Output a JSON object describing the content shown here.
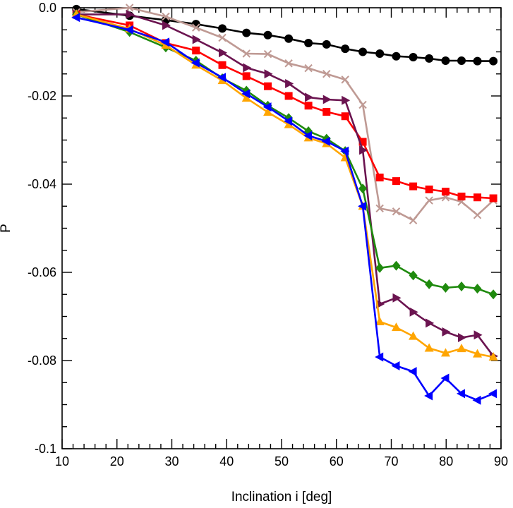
{
  "chart_data": {
    "type": "line",
    "title": "",
    "xlabel": "Inclination i [deg]",
    "ylabel": "P",
    "xlim": [
      10,
      90
    ],
    "ylim": [
      -0.1,
      0.0
    ],
    "xticks": [
      10,
      20,
      30,
      40,
      50,
      60,
      70,
      80,
      90
    ],
    "xtick_labels": [
      "10",
      "20",
      "30",
      "40",
      "50",
      "60",
      "70",
      "80",
      "90"
    ],
    "yticks": [
      0.0,
      -0.02,
      -0.04,
      -0.06,
      -0.08,
      -0.1
    ],
    "ytick_labels": [
      "0.0",
      "-0.02",
      "-0.04",
      "-0.06",
      "-0.08",
      "-0.1"
    ],
    "grid": false,
    "legend": "none",
    "series": [
      {
        "marker": "circle",
        "color": "#000000",
        "points": [
          [
            12.6,
            -0.0003
          ],
          [
            22.3,
            -0.0018
          ],
          [
            28.9,
            -0.0028
          ],
          [
            34.4,
            -0.0037
          ],
          [
            39.2,
            -0.0047
          ],
          [
            43.6,
            -0.0057
          ],
          [
            47.5,
            -0.0062
          ],
          [
            51.3,
            -0.007
          ],
          [
            54.9,
            -0.008
          ],
          [
            58.2,
            -0.0083
          ],
          [
            61.6,
            -0.0093
          ],
          [
            64.8,
            -0.01
          ],
          [
            67.9,
            -0.0104
          ],
          [
            70.9,
            -0.011
          ],
          [
            74.0,
            -0.0112
          ],
          [
            76.9,
            -0.0115
          ],
          [
            79.9,
            -0.012
          ],
          [
            82.8,
            -0.012
          ],
          [
            85.7,
            -0.0121
          ],
          [
            88.6,
            -0.0121
          ]
        ]
      },
      {
        "marker": "cross",
        "color": "#bf9a94",
        "points": [
          [
            12.6,
            -0.001
          ],
          [
            22.3,
            0.0
          ],
          [
            28.9,
            -0.002
          ],
          [
            34.4,
            -0.0045
          ],
          [
            39.2,
            -0.0068
          ],
          [
            43.6,
            -0.0104
          ],
          [
            47.5,
            -0.0105
          ],
          [
            51.3,
            -0.0126
          ],
          [
            54.9,
            -0.0137
          ],
          [
            58.2,
            -0.015
          ],
          [
            61.6,
            -0.0163
          ],
          [
            64.8,
            -0.022
          ],
          [
            67.9,
            -0.0455
          ],
          [
            70.9,
            -0.0462
          ],
          [
            74.0,
            -0.0482
          ],
          [
            76.9,
            -0.0437
          ],
          [
            79.9,
            -0.043
          ],
          [
            82.8,
            -0.044
          ],
          [
            85.7,
            -0.047
          ],
          [
            88.6,
            -0.0437
          ]
        ]
      },
      {
        "marker": "square",
        "color": "#ff0000",
        "points": [
          [
            12.6,
            -0.0015
          ],
          [
            22.3,
            -0.004
          ],
          [
            28.9,
            -0.008
          ],
          [
            34.4,
            -0.0097
          ],
          [
            39.2,
            -0.013
          ],
          [
            43.6,
            -0.0155
          ],
          [
            47.5,
            -0.0178
          ],
          [
            51.3,
            -0.02
          ],
          [
            54.9,
            -0.0222
          ],
          [
            58.2,
            -0.0236
          ],
          [
            61.6,
            -0.0246
          ],
          [
            64.8,
            -0.0304
          ],
          [
            67.9,
            -0.0385
          ],
          [
            70.9,
            -0.0393
          ],
          [
            74.0,
            -0.0405
          ],
          [
            76.9,
            -0.0412
          ],
          [
            79.9,
            -0.0417
          ],
          [
            82.8,
            -0.0428
          ],
          [
            85.7,
            -0.043
          ],
          [
            88.6,
            -0.0432
          ]
        ]
      },
      {
        "marker": "triangle-right",
        "color": "#6b1450",
        "points": [
          [
            12.6,
            -0.0015
          ],
          [
            22.3,
            -0.0015
          ],
          [
            28.9,
            -0.004
          ],
          [
            34.4,
            -0.0072
          ],
          [
            39.2,
            -0.0102
          ],
          [
            43.6,
            -0.0136
          ],
          [
            47.5,
            -0.015
          ],
          [
            51.3,
            -0.0172
          ],
          [
            54.9,
            -0.0203
          ],
          [
            58.2,
            -0.0208
          ],
          [
            61.6,
            -0.021
          ],
          [
            64.8,
            -0.0323
          ],
          [
            67.9,
            -0.0672
          ],
          [
            70.9,
            -0.0658
          ],
          [
            74.0,
            -0.069
          ],
          [
            76.9,
            -0.0715
          ],
          [
            79.9,
            -0.0735
          ],
          [
            82.8,
            -0.0748
          ],
          [
            85.7,
            -0.0742
          ],
          [
            88.6,
            -0.079
          ]
        ]
      },
      {
        "marker": "diamond",
        "color": "#1f8a0e",
        "points": [
          [
            12.6,
            -0.0015
          ],
          [
            22.3,
            -0.0055
          ],
          [
            28.9,
            -0.009
          ],
          [
            34.4,
            -0.012
          ],
          [
            39.2,
            -0.016
          ],
          [
            43.6,
            -0.0188
          ],
          [
            47.5,
            -0.0222
          ],
          [
            51.3,
            -0.025
          ],
          [
            54.9,
            -0.028
          ],
          [
            58.2,
            -0.0297
          ],
          [
            61.6,
            -0.0325
          ],
          [
            64.8,
            -0.041
          ],
          [
            67.9,
            -0.059
          ],
          [
            70.9,
            -0.0585
          ],
          [
            74.0,
            -0.0607
          ],
          [
            76.9,
            -0.0627
          ],
          [
            79.9,
            -0.0635
          ],
          [
            82.8,
            -0.0632
          ],
          [
            85.7,
            -0.0637
          ],
          [
            88.6,
            -0.065
          ]
        ]
      },
      {
        "marker": "triangle-up",
        "color": "#ffa500",
        "points": [
          [
            12.6,
            -0.0015
          ],
          [
            22.3,
            -0.0048
          ],
          [
            28.9,
            -0.0085
          ],
          [
            34.4,
            -0.013
          ],
          [
            39.2,
            -0.0165
          ],
          [
            43.6,
            -0.0205
          ],
          [
            47.5,
            -0.0237
          ],
          [
            51.3,
            -0.0265
          ],
          [
            54.9,
            -0.0295
          ],
          [
            58.2,
            -0.0308
          ],
          [
            61.6,
            -0.034
          ],
          [
            64.8,
            -0.045
          ],
          [
            67.9,
            -0.0712
          ],
          [
            70.9,
            -0.0725
          ],
          [
            74.0,
            -0.0745
          ],
          [
            76.9,
            -0.0772
          ],
          [
            79.9,
            -0.0783
          ],
          [
            82.8,
            -0.0773
          ],
          [
            85.7,
            -0.0785
          ],
          [
            88.6,
            -0.0792
          ]
        ]
      },
      {
        "marker": "triangle-left",
        "color": "#0000ff",
        "points": [
          [
            12.6,
            -0.0022
          ],
          [
            22.3,
            -0.005
          ],
          [
            28.9,
            -0.0078
          ],
          [
            34.4,
            -0.0125
          ],
          [
            39.2,
            -0.0158
          ],
          [
            43.6,
            -0.0195
          ],
          [
            47.5,
            -0.0225
          ],
          [
            51.3,
            -0.0257
          ],
          [
            54.9,
            -0.029
          ],
          [
            58.2,
            -0.0303
          ],
          [
            61.6,
            -0.0325
          ],
          [
            64.8,
            -0.045
          ],
          [
            67.9,
            -0.0792
          ],
          [
            70.9,
            -0.0812
          ],
          [
            74.0,
            -0.0825
          ],
          [
            76.9,
            -0.088
          ],
          [
            79.9,
            -0.084
          ],
          [
            82.8,
            -0.0875
          ],
          [
            85.7,
            -0.089
          ],
          [
            88.6,
            -0.0875
          ]
        ]
      }
    ]
  }
}
